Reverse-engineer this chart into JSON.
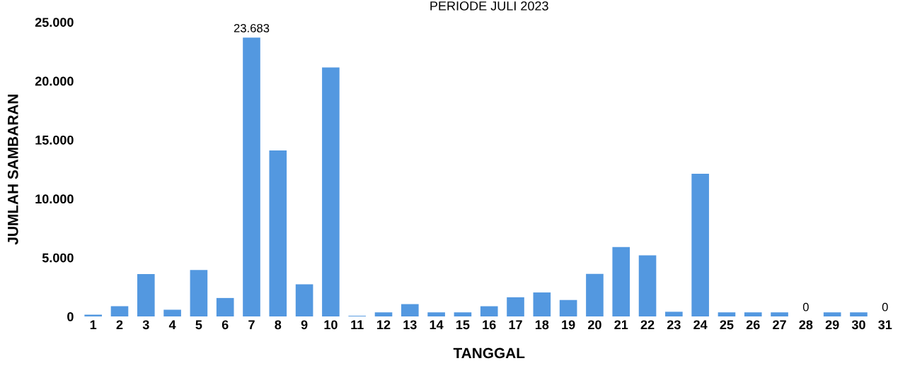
{
  "chart_data": {
    "type": "bar",
    "title": "PERIODE JULI 2023",
    "xlabel": "TANGGAL",
    "ylabel": "JUMLAH SAMBARAN",
    "categories": [
      "1",
      "2",
      "3",
      "4",
      "5",
      "6",
      "7",
      "8",
      "9",
      "10",
      "11",
      "12",
      "13",
      "14",
      "15",
      "16",
      "17",
      "18",
      "19",
      "20",
      "21",
      "22",
      "23",
      "24",
      "25",
      "26",
      "27",
      "28",
      "29",
      "30",
      "31"
    ],
    "values": [
      150,
      870,
      3600,
      580,
      3950,
      1570,
      23683,
      14100,
      2740,
      21150,
      60,
      350,
      1050,
      350,
      350,
      870,
      1630,
      2040,
      1400,
      3610,
      5890,
      5190,
      400,
      12120,
      350,
      350,
      350,
      0,
      350,
      350,
      0
    ],
    "value_labels": [
      null,
      null,
      null,
      null,
      null,
      null,
      "23.683",
      null,
      null,
      null,
      null,
      null,
      null,
      null,
      null,
      null,
      null,
      null,
      null,
      null,
      null,
      null,
      null,
      null,
      null,
      null,
      null,
      "0",
      null,
      null,
      "0"
    ],
    "color": "#5398e0",
    "ylim": [
      0,
      25000
    ],
    "yticks": [
      {
        "value": 0,
        "label": "0"
      },
      {
        "value": 5000,
        "label": "5.000"
      },
      {
        "value": 10000,
        "label": "10.000"
      },
      {
        "value": 15000,
        "label": "15.000"
      },
      {
        "value": 20000,
        "label": "20.000"
      },
      {
        "value": 25000,
        "label": "25.000"
      }
    ],
    "grid": false
  }
}
